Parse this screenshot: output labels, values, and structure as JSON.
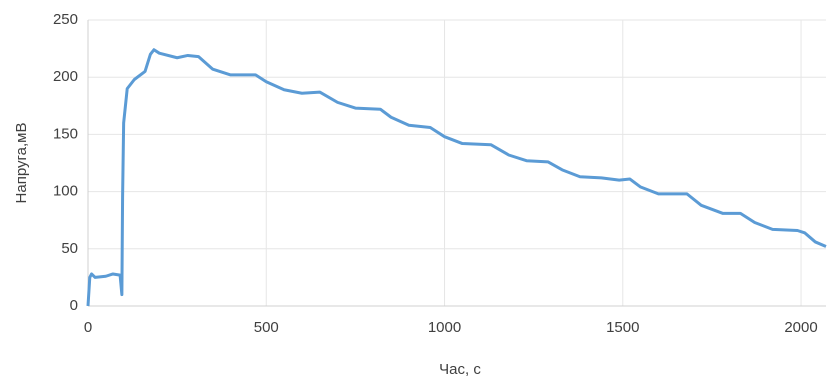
{
  "chart_data": {
    "type": "line",
    "x_label": "Час, с",
    "y_label": "Напруга,мВ",
    "series": [
      {
        "color": "#5b9bd5",
        "x": [
          0,
          5,
          10,
          20,
          50,
          70,
          90,
          95,
          97,
          100,
          110,
          130,
          160,
          175,
          185,
          200,
          250,
          280,
          310,
          350,
          400,
          470,
          500,
          550,
          600,
          650,
          700,
          750,
          820,
          850,
          900,
          960,
          1000,
          1050,
          1130,
          1180,
          1230,
          1290,
          1330,
          1380,
          1440,
          1490,
          1520,
          1550,
          1600,
          1680,
          1720,
          1780,
          1830,
          1870,
          1920,
          1990,
          2010,
          2040,
          2070
        ],
        "values": [
          0,
          25,
          28,
          25,
          26,
          28,
          27,
          10,
          95,
          160,
          190,
          198,
          205,
          220,
          224,
          221,
          217,
          219,
          218,
          207,
          202,
          202,
          196,
          189,
          186,
          187,
          178,
          173,
          172,
          165,
          158,
          156,
          148,
          142,
          141,
          132,
          127,
          126,
          119,
          113,
          112,
          110,
          111,
          104,
          98,
          98,
          88,
          81,
          81,
          73,
          67,
          66,
          64,
          56,
          52
        ]
      }
    ],
    "xlim": [
      0,
      2070
    ],
    "xticks": [
      0,
      500,
      1000,
      1500,
      2000
    ],
    "ylim": [
      0,
      250
    ],
    "yticks": [
      0,
      50,
      100,
      150,
      200,
      250
    ],
    "grid": true
  }
}
